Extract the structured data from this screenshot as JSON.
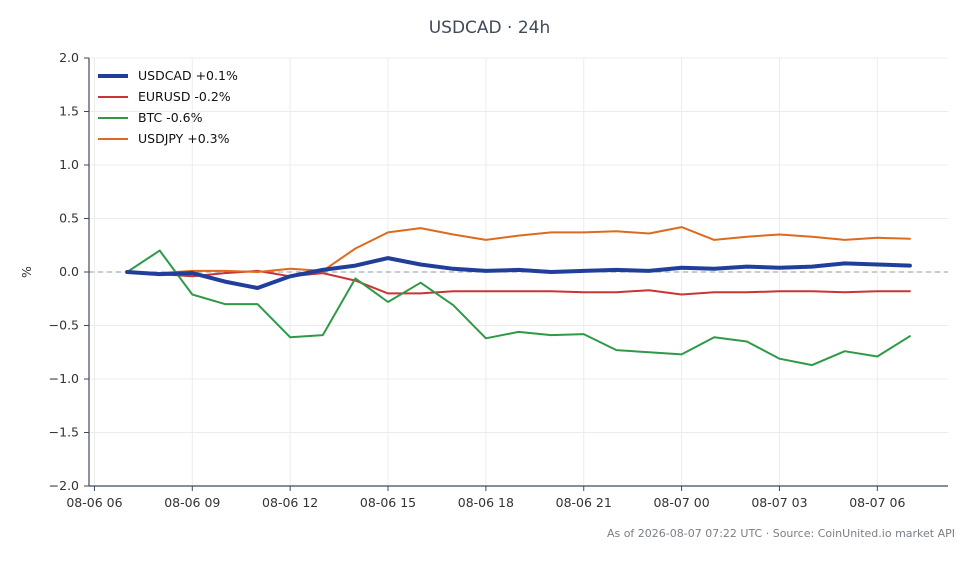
{
  "chart_data": {
    "type": "line",
    "title": "USDCAD · 24h",
    "ylabel": "%",
    "xlabel": "",
    "ylim": [
      -2.0,
      2.0
    ],
    "y_ticks": [
      -2.0,
      -1.5,
      -1.0,
      -0.5,
      0.0,
      0.5,
      1.0,
      1.5,
      2.0
    ],
    "y_tick_labels": [
      "−2.0",
      "−1.5",
      "−1.0",
      "−0.5",
      "0.0",
      "0.5",
      "1.0",
      "1.5",
      "2.0"
    ],
    "xlim": [
      "2026-08-06 05:50",
      "2026-08-07 08:10"
    ],
    "x_ticks": [
      "2026-08-06 06:00",
      "2026-08-06 09:00",
      "2026-08-06 12:00",
      "2026-08-06 15:00",
      "2026-08-06 18:00",
      "2026-08-06 21:00",
      "2026-08-07 00:00",
      "2026-08-07 03:00",
      "2026-08-07 06:00"
    ],
    "x_tick_labels": [
      "08-06 06",
      "08-06 09",
      "08-06 12",
      "08-06 15",
      "08-06 18",
      "08-06 21",
      "08-07 00",
      "08-07 03",
      "08-07 06"
    ],
    "x": [
      "2026-08-06 07:00",
      "2026-08-06 08:00",
      "2026-08-06 09:00",
      "2026-08-06 10:00",
      "2026-08-06 11:00",
      "2026-08-06 12:00",
      "2026-08-06 13:00",
      "2026-08-06 14:00",
      "2026-08-06 15:00",
      "2026-08-06 16:00",
      "2026-08-06 17:00",
      "2026-08-06 18:00",
      "2026-08-06 19:00",
      "2026-08-06 20:00",
      "2026-08-06 21:00",
      "2026-08-06 22:00",
      "2026-08-06 23:00",
      "2026-08-07 00:00",
      "2026-08-07 01:00",
      "2026-08-07 02:00",
      "2026-08-07 03:00",
      "2026-08-07 04:00",
      "2026-08-07 05:00",
      "2026-08-07 06:00",
      "2026-08-07 07:00"
    ],
    "series": [
      {
        "name": "USDCAD +0.1%",
        "color": "#1f3f9a",
        "width": 4,
        "values": [
          0.0,
          -0.02,
          -0.01,
          -0.09,
          -0.15,
          -0.04,
          0.02,
          0.06,
          0.13,
          0.07,
          0.03,
          0.01,
          0.02,
          0.0,
          0.01,
          0.02,
          0.01,
          0.04,
          0.03,
          0.05,
          0.04,
          0.05,
          0.08,
          0.07,
          0.06
        ]
      },
      {
        "name": "EURUSD -0.2%",
        "color": "#cc3333",
        "width": 2,
        "values": [
          0.0,
          -0.02,
          -0.04,
          -0.01,
          0.01,
          -0.04,
          -0.01,
          -0.08,
          -0.2,
          -0.2,
          -0.18,
          -0.18,
          -0.18,
          -0.18,
          -0.19,
          -0.19,
          -0.17,
          -0.21,
          -0.19,
          -0.19,
          -0.18,
          -0.18,
          -0.19,
          -0.18,
          -0.18
        ]
      },
      {
        "name": "BTC -0.6%",
        "color": "#2e9a47",
        "width": 2,
        "values": [
          0.0,
          0.2,
          -0.21,
          -0.3,
          -0.3,
          -0.61,
          -0.59,
          -0.06,
          -0.28,
          -0.1,
          -0.31,
          -0.62,
          -0.56,
          -0.59,
          -0.58,
          -0.73,
          -0.75,
          -0.77,
          -0.61,
          -0.65,
          -0.81,
          -0.87,
          -0.74,
          -0.79,
          -0.6
        ]
      },
      {
        "name": "USDJPY +0.3%",
        "color": "#dd6a1f",
        "width": 2,
        "values": [
          0.0,
          -0.01,
          0.01,
          0.01,
          0.0,
          0.03,
          0.01,
          0.22,
          0.37,
          0.41,
          0.35,
          0.3,
          0.34,
          0.37,
          0.37,
          0.38,
          0.36,
          0.42,
          0.3,
          0.33,
          0.35,
          0.33,
          0.3,
          0.32,
          0.31
        ]
      }
    ],
    "grid": true,
    "zero_line": "dashed",
    "legend_position": "top-left"
  },
  "footer": "As of 2026-08-07 07:22 UTC · Source: CoinUnited.io market API"
}
